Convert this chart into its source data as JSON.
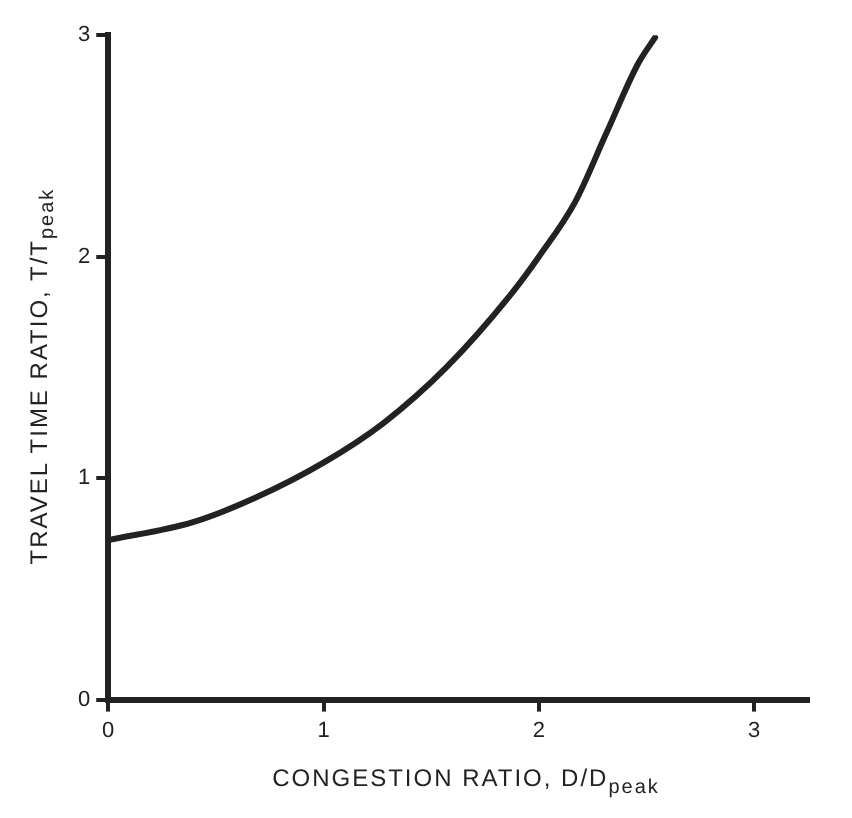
{
  "chart_data": {
    "type": "line",
    "xlabel": "CONGESTION RATIO, D/D$_{peak}$",
    "ylabel": "TRAVEL TIME RATIO, T/T$_{peak}$",
    "xlim": [
      0,
      3.25
    ],
    "ylim": [
      0,
      3
    ],
    "xticks": [
      0,
      1,
      2,
      3
    ],
    "yticks": [
      0,
      1,
      2,
      3
    ],
    "grid": false,
    "legend": false,
    "marker": "none",
    "line_style": "solid",
    "series": [
      {
        "color": "#222222",
        "x": [
          0,
          0.39,
          0.68,
          1,
          1.28,
          1.57,
          1.87,
          2,
          2.17,
          2.31,
          2.46,
          2.54
        ],
        "values": [
          0.72,
          0.8,
          0.91,
          1.07,
          1.25,
          1.5,
          1.83,
          2.0,
          2.25,
          2.55,
          2.87,
          2.99
        ]
      }
    ]
  }
}
